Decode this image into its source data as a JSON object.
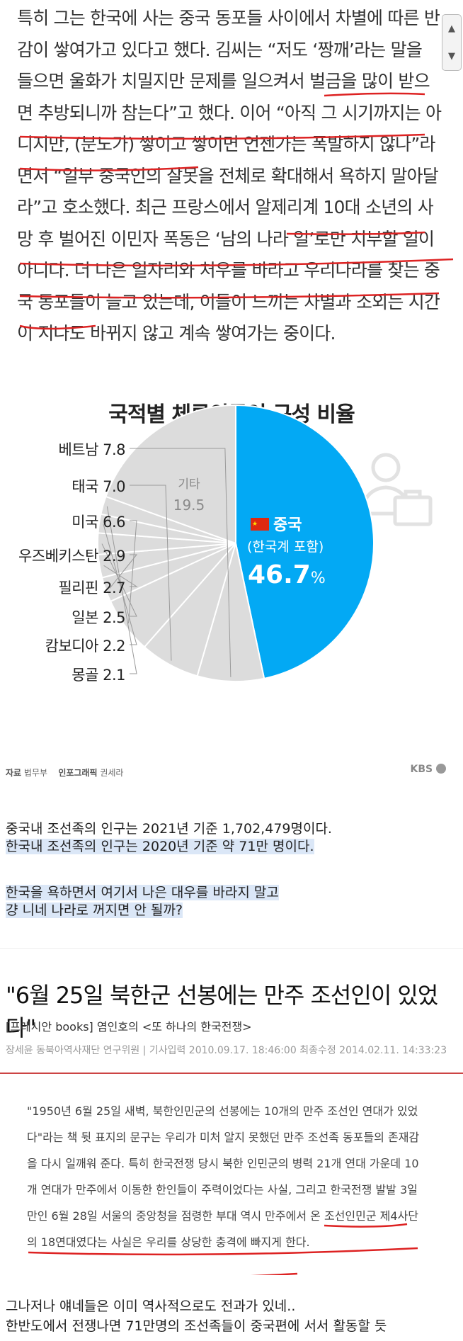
{
  "article_top": {
    "text": "특히 그는 한국에 사는 중국 동포들 사이에서 차별에 따른 반감이 쌓여가고 있다고 했다. 김씨는 “저도 ‘짱깨’라는 말을 들으면 울화가 치밀지만 문제를 일으켜서 벌금을 많이 받으면 추방되니까 참는다”고 했다. 이어 “아직 그 시기까지는 아니지만, (분노가) 쌓이고 쌓이면 언젠가는 폭발하지 않나”라면서 “일부 중국인의 잘못을 전체로 확대해서 욕하지 말아달라”고 호소했다. 최근 프랑스에서 알제리계 10대 소년의 사망 후 벌어진 이민자 폭동은 ‘남의 나라 일’로만 치부할 일이 아니다. 더 나은 일자리와 처우를 바라고 우리나라를 찾는 중국 동포들이 늘고 있는데, 이들이 느끼는 차별과 소외는 시간이 지나도 바뀌지 않고 계속 쌓여가는 중이다.",
    "scroll_up_icon": "chevron-up-icon",
    "scroll_down_icon": "chevron-down-icon"
  },
  "chart_data": {
    "type": "pie",
    "title": "국적별 체류외국인 구성 비율",
    "unit": "%",
    "slices": [
      {
        "label": "중국",
        "sublabel": "(한국계 포함)",
        "value": 46.7,
        "value_text": "46.7",
        "color": "#03a9f4"
      },
      {
        "label": "베트남",
        "value": 7.8,
        "value_text": "7.8",
        "color": "#dcdcdc"
      },
      {
        "label": "태국",
        "value": 7.0,
        "value_text": "7.0",
        "color": "#dcdcdc"
      },
      {
        "label": "미국",
        "value": 6.6,
        "value_text": "6.6",
        "color": "#dcdcdc"
      },
      {
        "label": "우즈베키스탄",
        "value": 2.9,
        "value_text": "2.9",
        "color": "#dcdcdc"
      },
      {
        "label": "필리핀",
        "value": 2.7,
        "value_text": "2.7",
        "color": "#dcdcdc"
      },
      {
        "label": "일본",
        "value": 2.5,
        "value_text": "2.5",
        "color": "#dcdcdc"
      },
      {
        "label": "캄보디아",
        "value": 2.2,
        "value_text": "2.2",
        "color": "#dcdcdc"
      },
      {
        "label": "몽골",
        "value": 2.1,
        "value_text": "2.1",
        "color": "#dcdcdc"
      },
      {
        "label": "기타",
        "value": 19.5,
        "value_text": "19.5",
        "color": "#dcdcdc"
      }
    ],
    "source_label": "자료",
    "source": "법무부",
    "graphic_label": "인포그래픽",
    "graphic_author": "권세라",
    "logo": "KBS"
  },
  "memo": {
    "line1": "중국내 조선족의 인구는 2021년 기준 1,702,479명이다.",
    "line2": "한국내 조선족의 인구는 2020년 기준 약 71만 명이다.",
    "line3": "한국을 욕하면서 여기서 나은 대우를 바라지 말고",
    "line4": "걍 니네 나라로 꺼지면 안 될까?"
  },
  "article2": {
    "headline": "\"6월 25일 북한군 선봉에는 만주 조선인이 있었다\"",
    "subline_prefix": "[프레시안 books]",
    "subline_rest": " 염인호의 <또 하나의 한국전쟁>",
    "meta": "장세윤 동북아역사재단 연구위원 | 기사입력 2010.09.17. 18:46:00 최종수정 2014.02.11. 14:33:23",
    "quote": "\"1950년 6월 25일 새벽, 북한인민군의 선봉에는 10개의 만주 조선인 연대가 있었다\"라는 책 뒷 표지의 문구는 우리가 미처 알지 못했던 만주 조선족 동포들의 존재감을 다시 일깨워 준다. 특히 한국전쟁 당시 북한 인민군의 병력 21개 연대 가운데 10개 연대가 만주에서 이동한 한인들이 주력이었다는 사실, 그리고 한국전쟁 발발 3일 만인 6월 28일 서울의 중앙청을 점령한 부대 역시 만주에서 온 조선인민군 제4사단의 18연대였다는 사실은 우리를 상당한 충격에 빠지게 한다."
  },
  "bottom_text": {
    "line1": "그나저나 얘네들은 이미 역사적으로도 전과가 있네..",
    "line2": "한반도에서 전쟁나면 71만명의 조선족들이 중국편에 서서 활동할 듯"
  }
}
